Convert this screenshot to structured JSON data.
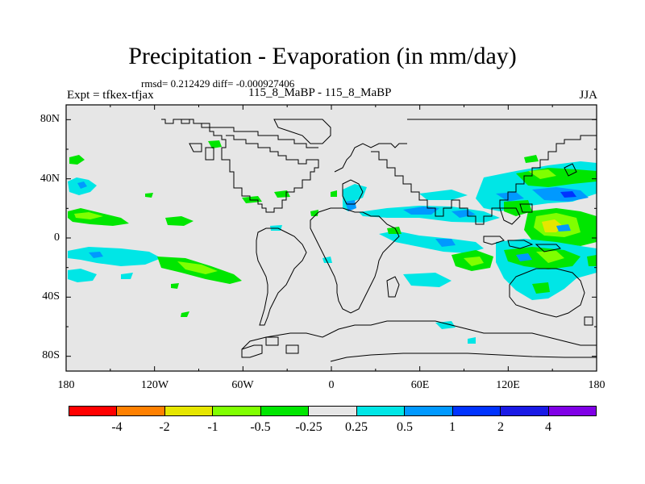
{
  "header": {
    "title": "Precipitation - Evaporation (in mm/day)",
    "stats": "rmsd= 0.212429  diff= -0.000927406",
    "experiment": "Expt = tfkex-tfjax",
    "run": "115_8_MaBP - 115_8_MaBP",
    "season": "JJA"
  },
  "axes": {
    "y_labels": [
      "80N",
      "40N",
      "0",
      "40S",
      "80S"
    ],
    "x_labels": [
      "180",
      "120W",
      "60W",
      "0",
      "60E",
      "120E",
      "180"
    ]
  },
  "map": {
    "projection": "cylindrical-equidistant",
    "lon_range": [
      -180,
      180
    ],
    "lat_range": [
      -90,
      90
    ],
    "background_color": "#e6e6e6",
    "coastline_color": "#000000"
  },
  "colorbar": {
    "colors": [
      "#ff0000",
      "#ff8000",
      "#e6e600",
      "#80ff00",
      "#00e600",
      "#e6e6e6",
      "#00e6e6",
      "#0099ff",
      "#0033ff",
      "#1a1ae6",
      "#8000e6"
    ],
    "labels": [
      "-4",
      "-2",
      "-1",
      "-0.5",
      "-0.25",
      "0.25",
      "0.5",
      "1",
      "2",
      "4"
    ]
  }
}
